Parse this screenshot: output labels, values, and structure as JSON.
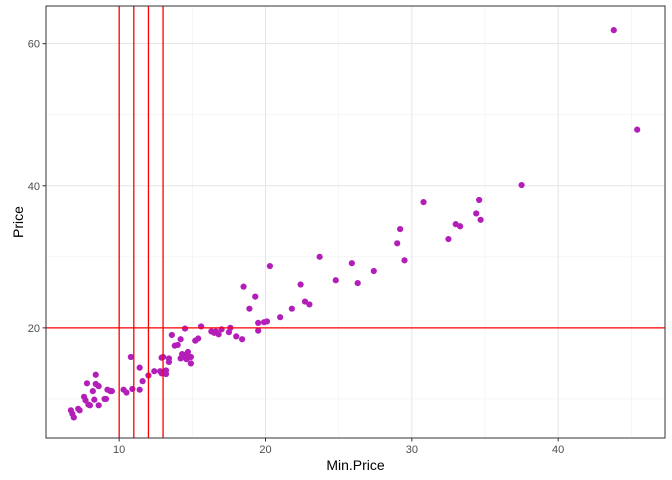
{
  "chart_data": {
    "type": "scatter",
    "title": "",
    "xlabel": "Min.Price",
    "ylabel": "Price",
    "xlim": [
      5,
      47.3
    ],
    "ylim": [
      4.5,
      65.3
    ],
    "grid": true,
    "x_ticks": [
      10,
      20,
      30,
      40
    ],
    "y_ticks": [
      20,
      40,
      60
    ],
    "point_color": "#b31eb8",
    "reference_line_color": "#ff0000",
    "vlines": [
      10,
      11,
      12,
      13
    ],
    "hlines": [
      20
    ],
    "points": [
      [
        6.7,
        8.4
      ],
      [
        6.8,
        7.9
      ],
      [
        6.9,
        7.4
      ],
      [
        7.2,
        8.6
      ],
      [
        7.3,
        8.4
      ],
      [
        7.6,
        10.3
      ],
      [
        7.7,
        9.8
      ],
      [
        7.8,
        12.2
      ],
      [
        7.9,
        9.2
      ],
      [
        8.0,
        9.1
      ],
      [
        8.2,
        11.1
      ],
      [
        8.3,
        9.9
      ],
      [
        8.4,
        12.1
      ],
      [
        8.4,
        13.4
      ],
      [
        8.6,
        9.1
      ],
      [
        8.6,
        11.8
      ],
      [
        9.0,
        10.0
      ],
      [
        9.1,
        10.0
      ],
      [
        9.2,
        11.3
      ],
      [
        9.4,
        11.1
      ],
      [
        9.5,
        11.1
      ],
      [
        10.3,
        11.3
      ],
      [
        10.5,
        10.9
      ],
      [
        10.8,
        15.9
      ],
      [
        10.9,
        11.4
      ],
      [
        11.4,
        14.4
      ],
      [
        11.4,
        11.3
      ],
      [
        11.6,
        12.5
      ],
      [
        12.0,
        13.3
      ],
      [
        12.4,
        13.9
      ],
      [
        12.8,
        13.9
      ],
      [
        12.9,
        13.6
      ],
      [
        12.9,
        15.8
      ],
      [
        13.0,
        15.9
      ],
      [
        13.2,
        13.5
      ],
      [
        13.2,
        14.0
      ],
      [
        13.4,
        15.2
      ],
      [
        13.4,
        15.7
      ],
      [
        13.6,
        19.0
      ],
      [
        13.8,
        17.5
      ],
      [
        14.0,
        17.6
      ],
      [
        14.2,
        18.4
      ],
      [
        14.2,
        15.7
      ],
      [
        14.3,
        16.3
      ],
      [
        14.4,
        15.9
      ],
      [
        14.5,
        19.9
      ],
      [
        14.6,
        15.6
      ],
      [
        14.6,
        16.3
      ],
      [
        14.7,
        16.6
      ],
      [
        14.9,
        15.9
      ],
      [
        14.9,
        15.0
      ],
      [
        15.2,
        18.2
      ],
      [
        15.4,
        18.5
      ],
      [
        15.6,
        20.2
      ],
      [
        16.3,
        19.5
      ],
      [
        16.5,
        19.3
      ],
      [
        16.6,
        19.5
      ],
      [
        16.8,
        19.1
      ],
      [
        17.0,
        19.8
      ],
      [
        17.5,
        19.4
      ],
      [
        17.6,
        20.0
      ],
      [
        18.0,
        18.8
      ],
      [
        18.4,
        18.4
      ],
      [
        18.5,
        25.8
      ],
      [
        18.9,
        22.7
      ],
      [
        19.3,
        24.4
      ],
      [
        19.5,
        20.7
      ],
      [
        19.5,
        19.6
      ],
      [
        19.9,
        20.8
      ],
      [
        20.1,
        20.9
      ],
      [
        20.3,
        28.7
      ],
      [
        21.0,
        21.5
      ],
      [
        21.8,
        22.7
      ],
      [
        22.4,
        26.1
      ],
      [
        22.7,
        23.7
      ],
      [
        23.0,
        23.3
      ],
      [
        23.7,
        30.0
      ],
      [
        24.8,
        26.7
      ],
      [
        25.9,
        29.1
      ],
      [
        26.3,
        26.3
      ],
      [
        27.4,
        28.0
      ],
      [
        29.0,
        31.9
      ],
      [
        29.2,
        33.9
      ],
      [
        29.5,
        29.5
      ],
      [
        30.8,
        37.7
      ],
      [
        32.5,
        32.5
      ],
      [
        33.0,
        34.6
      ],
      [
        33.3,
        34.3
      ],
      [
        34.4,
        36.1
      ],
      [
        34.6,
        38.0
      ],
      [
        34.7,
        35.2
      ],
      [
        37.5,
        40.1
      ],
      [
        43.8,
        61.9
      ],
      [
        45.4,
        47.9
      ]
    ]
  }
}
